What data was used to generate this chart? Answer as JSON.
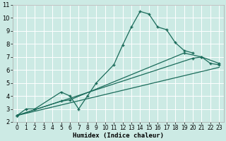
{
  "bg_color": "#cceae4",
  "grid_color": "#ffffff",
  "line_color": "#1a6b5a",
  "xlabel": "Humidex (Indice chaleur)",
  "xlim": [
    -0.5,
    23.5
  ],
  "ylim": [
    2,
    11
  ],
  "xticks": [
    0,
    1,
    2,
    3,
    4,
    5,
    6,
    7,
    8,
    9,
    10,
    11,
    12,
    13,
    14,
    15,
    16,
    17,
    18,
    19,
    20,
    21,
    22,
    23
  ],
  "yticks": [
    2,
    3,
    4,
    5,
    6,
    7,
    8,
    9,
    10,
    11
  ],
  "curve1_x": [
    0,
    1,
    2,
    5,
    6,
    7,
    8,
    9,
    11,
    12,
    13,
    14,
    15,
    16,
    17,
    18,
    19,
    20
  ],
  "curve1_y": [
    2.5,
    3.0,
    3.0,
    4.3,
    4.0,
    3.0,
    4.0,
    5.0,
    6.4,
    7.9,
    9.3,
    10.5,
    10.3,
    9.3,
    9.1,
    8.1,
    7.5,
    7.3
  ],
  "curve2_x": [
    0,
    5,
    6,
    19,
    21,
    23
  ],
  "curve2_y": [
    2.5,
    3.6,
    3.7,
    7.3,
    7.0,
    6.5
  ],
  "curve3_x": [
    0,
    20,
    21,
    22,
    23
  ],
  "curve3_y": [
    2.5,
    6.9,
    7.0,
    6.5,
    6.4
  ],
  "curve4_x": [
    0,
    23
  ],
  "curve4_y": [
    2.5,
    6.2
  ]
}
